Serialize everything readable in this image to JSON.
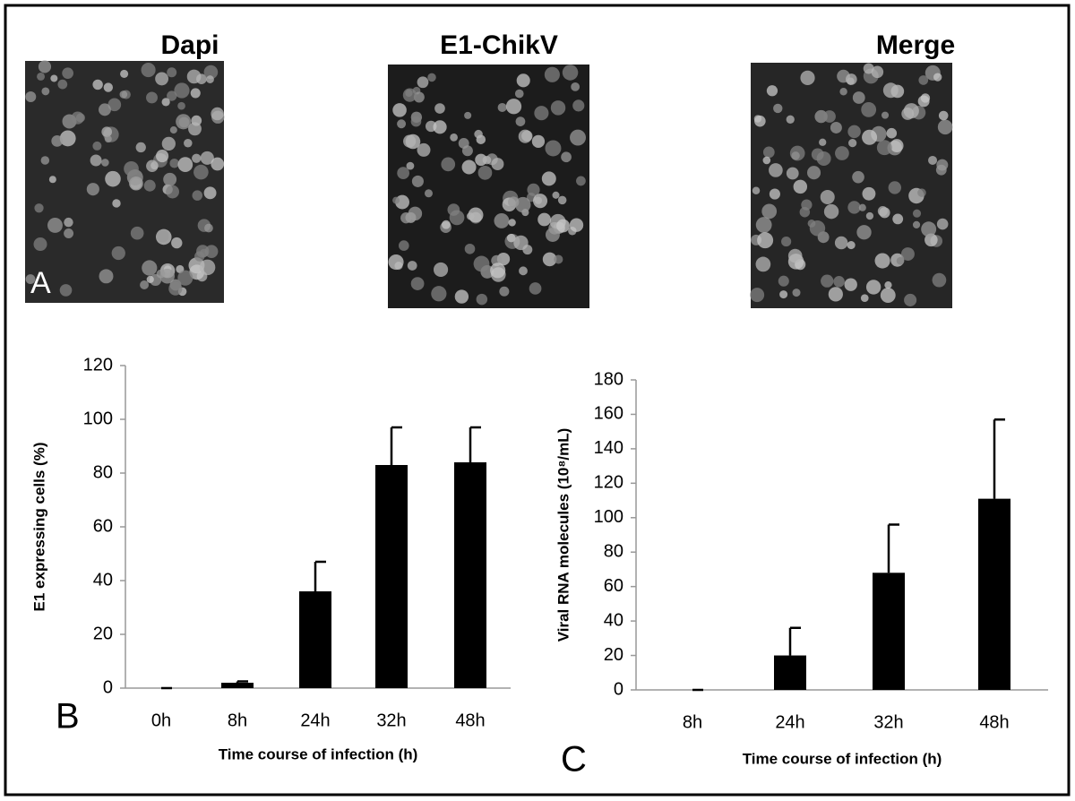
{
  "figure": {
    "panel_titles": [
      "Dapi",
      "E1-ChikV",
      "Merge"
    ],
    "panel_labels": [
      "A",
      "B",
      "C"
    ]
  },
  "chart_data": [
    {
      "type": "bar",
      "xlabel": "Time course of infection (h)",
      "ylabel": "E1 expressing cells (%)",
      "categories": [
        "0h",
        "8h",
        "24h",
        "32h",
        "48h"
      ],
      "values": [
        0,
        2,
        36,
        83,
        84
      ],
      "errors": [
        0,
        0.5,
        11,
        14,
        13
      ],
      "color": "#000000",
      "ylim": [
        0,
        120
      ],
      "yticks": [
        0,
        20,
        40,
        60,
        80,
        100,
        120
      ]
    },
    {
      "type": "bar",
      "xlabel": "Time course of infection (h)",
      "ylabel": "Viral RNA molecules (10⁸/mL)",
      "categories": [
        "8h",
        "24h",
        "32h",
        "48h"
      ],
      "values": [
        0,
        20,
        68,
        111
      ],
      "errors": [
        0,
        16,
        28,
        46
      ],
      "color": "#000000",
      "ylim": [
        0,
        180
      ],
      "yticks": [
        0,
        20,
        40,
        60,
        80,
        100,
        120,
        140,
        160,
        180
      ]
    }
  ]
}
